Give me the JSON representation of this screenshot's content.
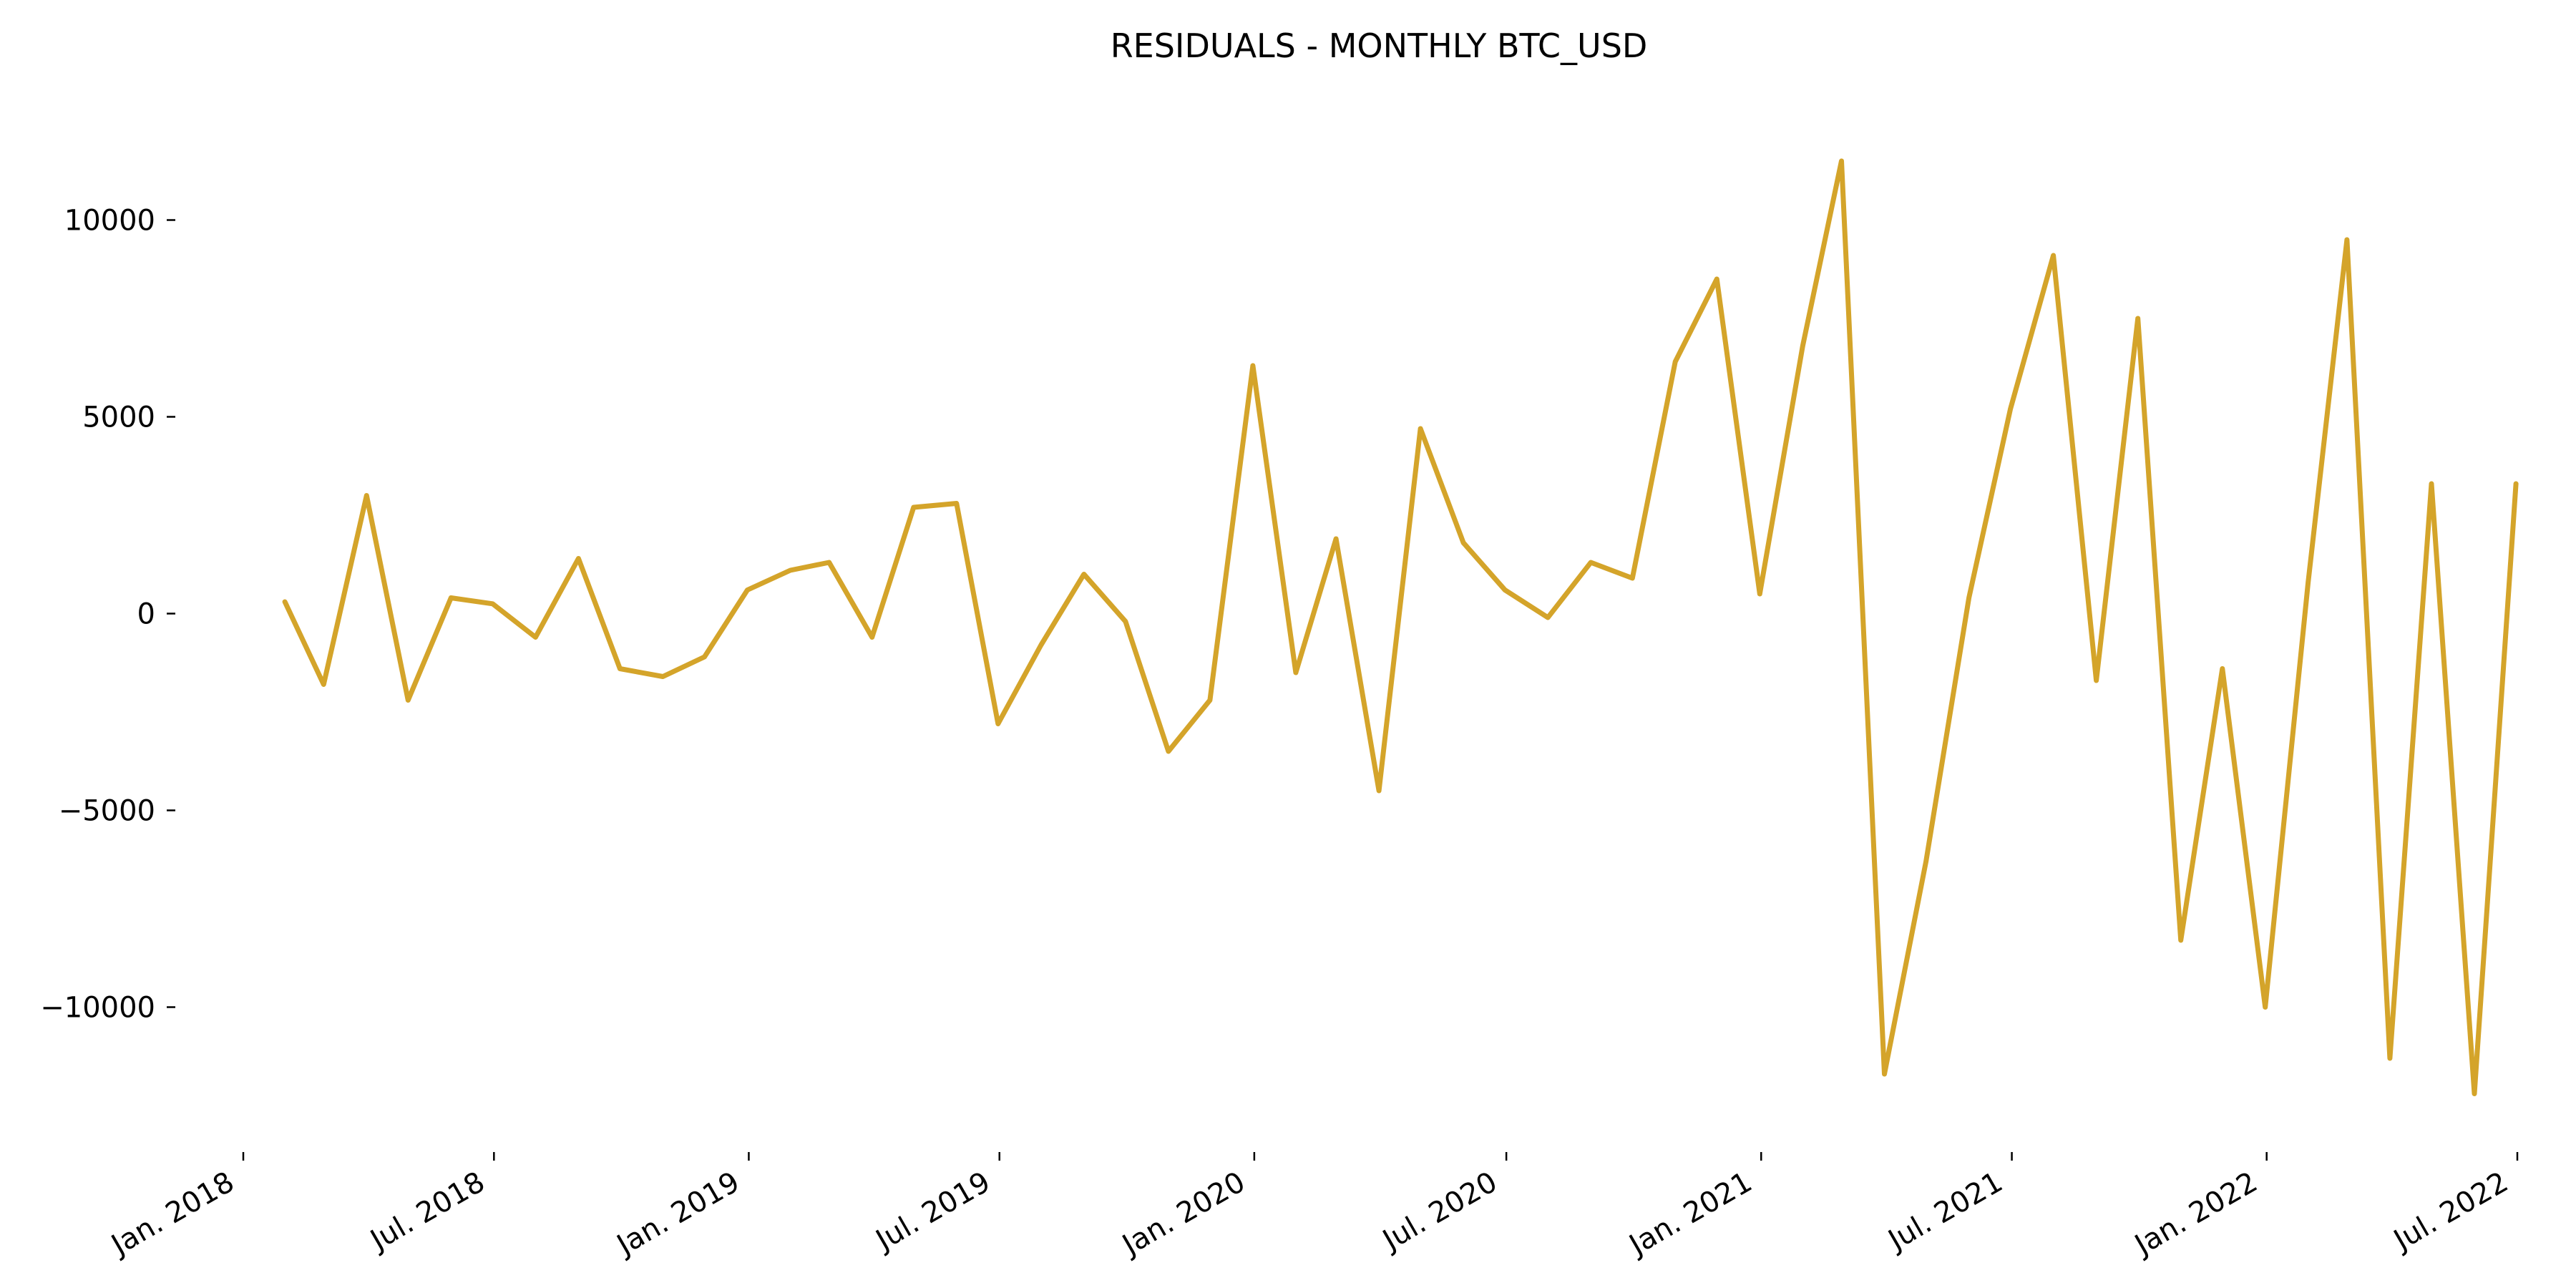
{
  "chart_data": {
    "type": "line",
    "title": "RESIDUALS - MONTHLY BTC_USD",
    "xlabel": "",
    "ylabel": "",
    "grid": false,
    "legend": "none",
    "line_color": "#D4A42A",
    "xlim": [
      "2018-01-01",
      "2022-07-01"
    ],
    "ylim": [
      -13500,
      12500
    ],
    "x_ticks": [
      {
        "date": "2018-01-01",
        "label": "Jan. 2018"
      },
      {
        "date": "2018-07-01",
        "label": "Jul. 2018"
      },
      {
        "date": "2019-01-01",
        "label": "Jan. 2019"
      },
      {
        "date": "2019-07-01",
        "label": "Jul. 2019"
      },
      {
        "date": "2020-01-01",
        "label": "Jan. 2020"
      },
      {
        "date": "2020-07-01",
        "label": "Jul. 2020"
      },
      {
        "date": "2021-01-01",
        "label": "Jan. 2021"
      },
      {
        "date": "2021-07-01",
        "label": "Jul. 2021"
      },
      {
        "date": "2022-01-01",
        "label": "Jan. 2022"
      },
      {
        "date": "2022-07-01",
        "label": "Jul. 2022"
      }
    ],
    "y_ticks": [
      {
        "value": 10000,
        "label": "10000"
      },
      {
        "value": 5000,
        "label": "5000"
      },
      {
        "value": 0,
        "label": "0"
      },
      {
        "value": -5000,
        "label": "−5000"
      },
      {
        "value": -10000,
        "label": "−10000"
      }
    ],
    "series": [
      {
        "x": [
          "2018-01-31",
          "2018-02-28",
          "2018-03-31",
          "2018-04-30",
          "2018-05-31",
          "2018-06-30",
          "2018-07-31",
          "2018-08-31",
          "2018-09-30",
          "2018-10-31",
          "2018-11-30",
          "2018-12-31",
          "2019-01-31",
          "2019-02-28",
          "2019-03-31",
          "2019-04-30",
          "2019-05-31",
          "2019-06-30",
          "2019-07-31",
          "2019-08-31",
          "2019-09-30",
          "2019-10-31",
          "2019-11-30",
          "2019-12-31",
          "2020-01-31",
          "2020-02-29",
          "2020-03-31",
          "2020-04-30",
          "2020-05-31",
          "2020-06-30",
          "2020-07-31",
          "2020-08-31",
          "2020-09-30",
          "2020-10-31",
          "2020-11-30",
          "2020-12-31",
          "2021-01-31",
          "2021-02-28",
          "2021-03-31",
          "2021-04-30",
          "2021-05-31",
          "2021-06-30",
          "2021-07-31",
          "2021-08-31",
          "2021-09-30",
          "2021-10-31",
          "2021-11-30",
          "2021-12-31",
          "2022-01-31",
          "2022-02-28",
          "2022-03-31",
          "2022-04-30",
          "2022-05-31",
          "2022-06-30"
        ],
        "values": [
          300,
          -1800,
          3000,
          -2200,
          400,
          250,
          -600,
          1400,
          -1400,
          -1600,
          -1100,
          600,
          1100,
          1300,
          -600,
          2700,
          2800,
          -2800,
          -800,
          1000,
          -200,
          -3500,
          -2200,
          6300,
          -1500,
          1900,
          -4500,
          4700,
          1800,
          600,
          -100,
          1300,
          900,
          6400,
          8500,
          500,
          6800,
          11500,
          -11700,
          -6300,
          400,
          5200,
          9100,
          -1700,
          7500,
          -8300,
          -1400,
          -10000,
          800,
          9500,
          -11300,
          3300,
          -12200,
          3300
        ]
      }
    ]
  }
}
